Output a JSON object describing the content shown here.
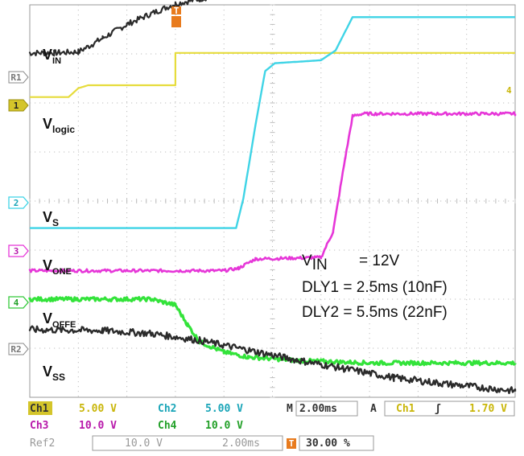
{
  "colors": {
    "background": "#ffffff",
    "grid": "#bdbdbd",
    "vin": "#2b2b2b",
    "vlogic": "#e6dc3c",
    "vs": "#3fd4e6",
    "vone": "#e636d8",
    "voffe": "#33e33a",
    "vss": "#2b2b2b",
    "trigger": "#e87b1e"
  },
  "labels": {
    "vin": {
      "main": "V",
      "sub": "IN"
    },
    "vlogic": {
      "main": "V",
      "sub": "logic"
    },
    "vs": {
      "main": "V",
      "sub": "S"
    },
    "vone": {
      "main": "V",
      "sub": "ONE"
    },
    "voffe": {
      "main": "V",
      "sub": "OFFE"
    },
    "vss": {
      "main": "V",
      "sub": "SS"
    }
  },
  "markers": {
    "ref1": "R1",
    "ch1": "1",
    "ch2": "2",
    "ch3": "3",
    "ch4": "4",
    "ref2": "R2",
    "trigger": "T",
    "trigger_level": "4"
  },
  "annotation": {
    "vin_label": "V",
    "vin_sub": "IN",
    "vin_value": "= 12V",
    "dly1": "DLY1 = 2.5ms (10nF)",
    "dly2": "DLY2 = 5.5ms (22nF)"
  },
  "readout": {
    "ch1": "Ch1",
    "ch1_scale": "5.00 V",
    "ch2": "Ch2",
    "ch2_scale": "5.00 V",
    "ch3": "Ch3",
    "ch3_scale": "10.0 V",
    "ch4": "Ch4",
    "ch4_scale": "10.0 V",
    "timebase_prefix": "M",
    "timebase": "2.00ms",
    "acq": "A",
    "trig_source": "Ch1",
    "trig_slope": "ʃ",
    "trig_level": "1.70 V",
    "ref2": "Ref2",
    "ref2_scale": "10.0 V",
    "ref2_time": "2.00ms",
    "trig_pos_icon": "T",
    "trig_pos": "30.00 %"
  },
  "chart_data": {
    "type": "line",
    "title": "",
    "xlabel": "",
    "ylabel": "",
    "x_unit": "ms",
    "xlim": [
      -6,
      14
    ],
    "ylim": [
      -4,
      4
    ],
    "grid": true,
    "series": [
      {
        "name": "VIN",
        "channel": "Ref1",
        "offset_div": 3.02,
        "noise": 0.06,
        "points": [
          [
            -6,
            0
          ],
          [
            -5,
            0
          ],
          [
            -4,
            0.02
          ],
          [
            -3.4,
            0.18
          ],
          [
            -3,
            0.3
          ],
          [
            -2,
            0.58
          ],
          [
            -1,
            0.8
          ],
          [
            0,
            1.0
          ],
          [
            1,
            1.1
          ],
          [
            2,
            1.2
          ],
          [
            4,
            1.33
          ],
          [
            6,
            1.43
          ],
          [
            8,
            1.5
          ],
          [
            10,
            1.54
          ],
          [
            12,
            1.56
          ],
          [
            14,
            1.58
          ]
        ]
      },
      {
        "name": "Vlogic",
        "channel": "Ch1",
        "scale": "5.00 V",
        "offset_div": 2.12,
        "noise": 0,
        "points": [
          [
            -6,
            0
          ],
          [
            -4.4,
            0
          ],
          [
            -4,
            0.18
          ],
          [
            -3.6,
            0.24
          ],
          [
            0,
            0.24
          ],
          [
            0,
            0.9
          ],
          [
            14,
            0.9
          ]
        ]
      },
      {
        "name": "VS",
        "channel": "Ch2",
        "scale": "5.00 V",
        "offset_div": -0.55,
        "noise": 0,
        "points": [
          [
            -6,
            0
          ],
          [
            2.5,
            0
          ],
          [
            2.8,
            0.6
          ],
          [
            3.3,
            2.1
          ],
          [
            3.7,
            3.2
          ],
          [
            4.1,
            3.36
          ],
          [
            6,
            3.42
          ],
          [
            6.6,
            3.62
          ],
          [
            7.3,
            4.3
          ],
          [
            14,
            4.3
          ]
        ]
      },
      {
        "name": "VONE",
        "channel": "Ch3",
        "scale": "10.0 V",
        "offset_div": -1.42,
        "noise": 0.03,
        "points": [
          [
            -6,
            0
          ],
          [
            2,
            0
          ],
          [
            2.6,
            0.05
          ],
          [
            3.3,
            0.24
          ],
          [
            4.2,
            0.25
          ],
          [
            6,
            0.27
          ],
          [
            6.5,
            0.8
          ],
          [
            7,
            2.3
          ],
          [
            7.3,
            3.15
          ],
          [
            7.7,
            3.2
          ],
          [
            14,
            3.2
          ]
        ]
      },
      {
        "name": "VOFFE",
        "channel": "Ch4",
        "scale": "10.0 V",
        "offset_div": -2.0,
        "noise": 0.04,
        "points": [
          [
            -6,
            0
          ],
          [
            -1,
            0
          ],
          [
            0,
            -0.12
          ],
          [
            0.5,
            -0.52
          ],
          [
            1,
            -0.87
          ],
          [
            2,
            -1.08
          ],
          [
            3,
            -1.18
          ],
          [
            5,
            -1.25
          ],
          [
            8,
            -1.3
          ],
          [
            14,
            -1.3
          ]
        ]
      },
      {
        "name": "VSS",
        "channel": "Ref2",
        "scale": "10.0 V",
        "offset_div": -2.62,
        "noise": 0.07,
        "points": [
          [
            -6,
            0
          ],
          [
            -3,
            -0.02
          ],
          [
            -1,
            -0.08
          ],
          [
            1,
            -0.22
          ],
          [
            3,
            -0.42
          ],
          [
            5,
            -0.62
          ],
          [
            7,
            -0.8
          ],
          [
            9,
            -0.98
          ],
          [
            11,
            -1.1
          ],
          [
            13,
            -1.2
          ],
          [
            14,
            -1.25
          ]
        ]
      }
    ]
  }
}
